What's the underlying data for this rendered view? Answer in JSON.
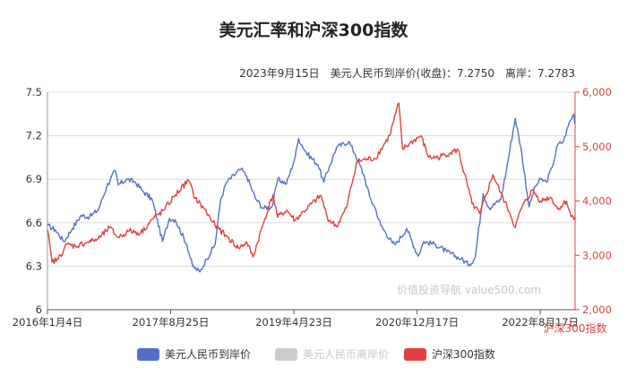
{
  "chart_data": {
    "type": "line",
    "title": "美元汇率和沪深300指数",
    "subtitle": "2023年9月15日　美元人民币到岸价(收盘)：7.2750　离岸：7.2783",
    "watermark": "价值投资导航 value500.com",
    "x_ticks": [
      "2016年1月4日",
      "2017年8月25日",
      "2019年4月23日",
      "2020年12月17日",
      "2022年8月17日"
    ],
    "y_left": {
      "ticks": [
        "6",
        "6.3",
        "6.6",
        "6.9",
        "7.2",
        "7.5"
      ],
      "range": [
        6,
        7.5
      ]
    },
    "y_right": {
      "ticks": [
        "2,000",
        "3,000",
        "4,000",
        "5,000",
        "6,000"
      ],
      "range": [
        2000,
        6000
      ],
      "label": "沪深300指数"
    },
    "legend": {
      "position": "bottom"
    },
    "grid": true,
    "series": [
      {
        "name": "美元人民币到岸价",
        "axis": "left",
        "color": "#5470c6",
        "points": [
          [
            "2016-01-04",
            6.58
          ],
          [
            "2016-02-15",
            6.55
          ],
          [
            "2016-04-01",
            6.47
          ],
          [
            "2016-05-15",
            6.56
          ],
          [
            "2016-07-01",
            6.65
          ],
          [
            "2016-08-15",
            6.64
          ],
          [
            "2016-10-01",
            6.69
          ],
          [
            "2016-11-15",
            6.85
          ],
          [
            "2016-12-30",
            6.96
          ],
          [
            "2017-01-15",
            6.86
          ],
          [
            "2017-03-01",
            6.9
          ],
          [
            "2017-04-15",
            6.88
          ],
          [
            "2017-06-01",
            6.81
          ],
          [
            "2017-07-15",
            6.76
          ],
          [
            "2017-09-08",
            6.47
          ],
          [
            "2017-10-15",
            6.63
          ],
          [
            "2017-11-15",
            6.62
          ],
          [
            "2018-01-15",
            6.45
          ],
          [
            "2018-02-15",
            6.3
          ],
          [
            "2018-03-26",
            6.26
          ],
          [
            "2018-05-01",
            6.35
          ],
          [
            "2018-06-15",
            6.45
          ],
          [
            "2018-07-15",
            6.76
          ],
          [
            "2018-08-15",
            6.88
          ],
          [
            "2018-10-31",
            6.97
          ],
          [
            "2018-12-01",
            6.92
          ],
          [
            "2019-01-15",
            6.77
          ],
          [
            "2019-02-25",
            6.7
          ],
          [
            "2019-04-15",
            6.71
          ],
          [
            "2019-05-15",
            6.9
          ],
          [
            "2019-07-01",
            6.87
          ],
          [
            "2019-08-15",
            7.05
          ],
          [
            "2019-09-03",
            7.18
          ],
          [
            "2019-10-15",
            7.08
          ],
          [
            "2019-12-15",
            7.0
          ],
          [
            "2020-01-15",
            6.88
          ],
          [
            "2020-02-15",
            6.99
          ],
          [
            "2020-03-23",
            7.12
          ],
          [
            "2020-05-27",
            7.16
          ],
          [
            "2020-07-01",
            7.07
          ],
          [
            "2020-08-15",
            6.93
          ],
          [
            "2020-09-15",
            6.78
          ],
          [
            "2020-10-15",
            6.7
          ],
          [
            "2020-11-15",
            6.58
          ],
          [
            "2021-01-15",
            6.46
          ],
          [
            "2021-02-01",
            6.45
          ],
          [
            "2021-04-01",
            6.56
          ],
          [
            "2021-05-31",
            6.37
          ],
          [
            "2021-07-01",
            6.47
          ],
          [
            "2021-09-01",
            6.45
          ],
          [
            "2021-11-01",
            6.4
          ],
          [
            "2022-01-15",
            6.35
          ],
          [
            "2022-02-28",
            6.31
          ],
          [
            "2022-04-01",
            6.36
          ],
          [
            "2022-05-13",
            6.8
          ],
          [
            "2022-06-15",
            6.7
          ],
          [
            "2022-08-15",
            6.76
          ],
          [
            "2022-09-15",
            6.97
          ],
          [
            "2022-10-31",
            7.32
          ],
          [
            "2022-11-30",
            7.12
          ],
          [
            "2023-01-13",
            6.71
          ],
          [
            "2023-02-15",
            6.85
          ],
          [
            "2023-03-15",
            6.9
          ],
          [
            "2023-04-15",
            6.88
          ],
          [
            "2023-05-15",
            6.98
          ],
          [
            "2023-06-15",
            7.14
          ],
          [
            "2023-07-15",
            7.16
          ],
          [
            "2023-08-15",
            7.29
          ],
          [
            "2023-09-08",
            7.35
          ],
          [
            "2023-09-15",
            7.28
          ]
        ]
      },
      {
        "name": "美元人民币离岸价",
        "axis": "left",
        "color": "#cccccc",
        "hidden": true,
        "points": []
      },
      {
        "name": "沪深300指数",
        "axis": "right",
        "color": "#e04040",
        "points": [
          [
            "2016-01-04",
            3470
          ],
          [
            "2016-01-28",
            2880
          ],
          [
            "2016-03-01",
            2930
          ],
          [
            "2016-04-15",
            3200
          ],
          [
            "2016-06-01",
            3170
          ],
          [
            "2016-08-01",
            3240
          ],
          [
            "2016-10-01",
            3300
          ],
          [
            "2016-11-30",
            3510
          ],
          [
            "2017-01-15",
            3330
          ],
          [
            "2017-03-15",
            3450
          ],
          [
            "2017-05-15",
            3410
          ],
          [
            "2017-07-15",
            3660
          ],
          [
            "2017-09-15",
            3830
          ],
          [
            "2017-11-15",
            4110
          ],
          [
            "2018-01-24",
            4380
          ],
          [
            "2018-03-01",
            4050
          ],
          [
            "2018-04-15",
            3870
          ],
          [
            "2018-06-15",
            3550
          ],
          [
            "2018-08-15",
            3350
          ],
          [
            "2018-10-18",
            3130
          ],
          [
            "2018-12-01",
            3240
          ],
          [
            "2019-01-03",
            2970
          ],
          [
            "2019-02-25",
            3560
          ],
          [
            "2019-04-19",
            4110
          ],
          [
            "2019-05-15",
            3700
          ],
          [
            "2019-07-01",
            3830
          ],
          [
            "2019-08-15",
            3640
          ],
          [
            "2019-10-01",
            3810
          ],
          [
            "2019-12-31",
            4100
          ],
          [
            "2020-02-03",
            3690
          ],
          [
            "2020-03-23",
            3530
          ],
          [
            "2020-05-15",
            3870
          ],
          [
            "2020-07-09",
            4720
          ],
          [
            "2020-09-01",
            4770
          ],
          [
            "2020-10-15",
            4780
          ],
          [
            "2020-12-31",
            5200
          ],
          [
            "2021-02-18",
            5800
          ],
          [
            "2021-03-10",
            4950
          ],
          [
            "2021-04-15",
            5050
          ],
          [
            "2021-06-15",
            5200
          ],
          [
            "2021-07-28",
            4800
          ],
          [
            "2021-09-15",
            4800
          ],
          [
            "2021-11-15",
            4880
          ],
          [
            "2021-12-31",
            4940
          ],
          [
            "2022-03-15",
            3950
          ],
          [
            "2022-04-26",
            3760
          ],
          [
            "2022-07-04",
            4480
          ],
          [
            "2022-08-15",
            4150
          ],
          [
            "2022-09-30",
            3800
          ],
          [
            "2022-10-31",
            3510
          ],
          [
            "2022-12-01",
            3850
          ],
          [
            "2023-01-30",
            4200
          ],
          [
            "2023-03-15",
            4000
          ],
          [
            "2023-05-08",
            4070
          ],
          [
            "2023-06-15",
            3850
          ],
          [
            "2023-07-31",
            4000
          ],
          [
            "2023-08-25",
            3710
          ],
          [
            "2023-09-15",
            3710
          ]
        ]
      }
    ]
  }
}
